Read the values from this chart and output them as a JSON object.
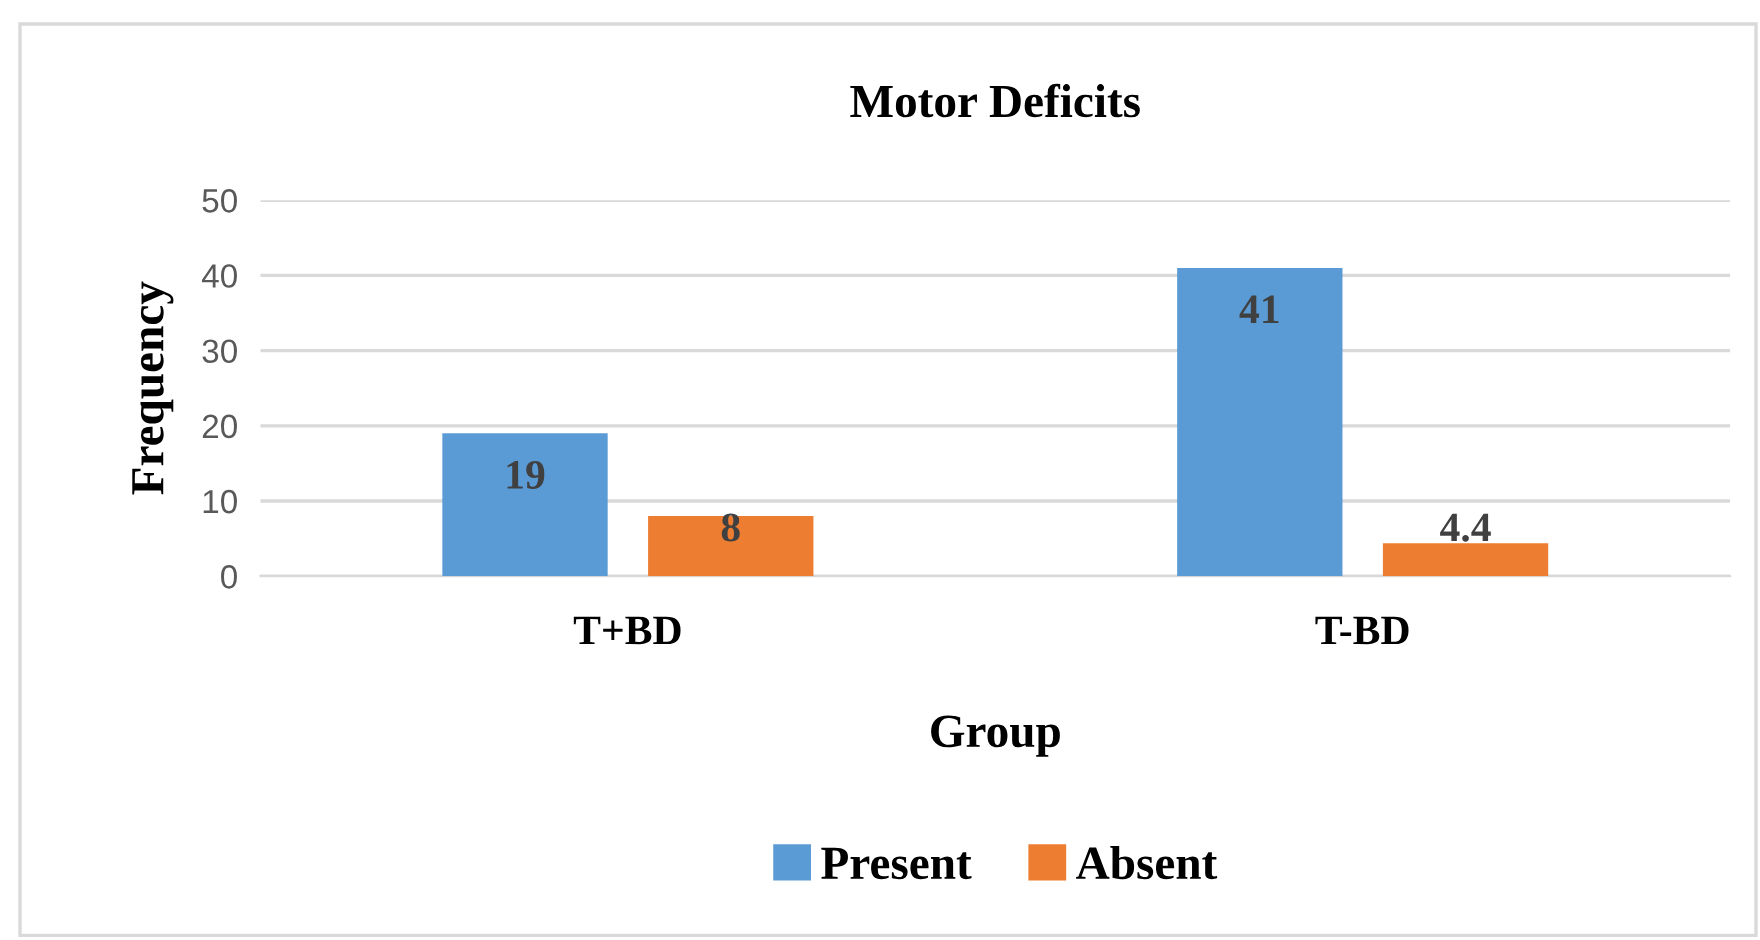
{
  "chart_data": {
    "type": "bar",
    "title": "Motor Deficits",
    "xlabel": "Group",
    "ylabel": "Frequency",
    "categories": [
      "T+BD",
      "T-BD"
    ],
    "series": [
      {
        "name": "Present",
        "color": "#5b9bd5",
        "values": [
          19,
          41
        ]
      },
      {
        "name": "Absent",
        "color": "#ed7d31",
        "values": [
          8,
          4.4
        ]
      }
    ],
    "ylim": [
      0,
      50
    ],
    "yticks": [
      0,
      10,
      20,
      30,
      40,
      50
    ],
    "grid": "y",
    "legend": "bottom",
    "data_labels": true
  }
}
